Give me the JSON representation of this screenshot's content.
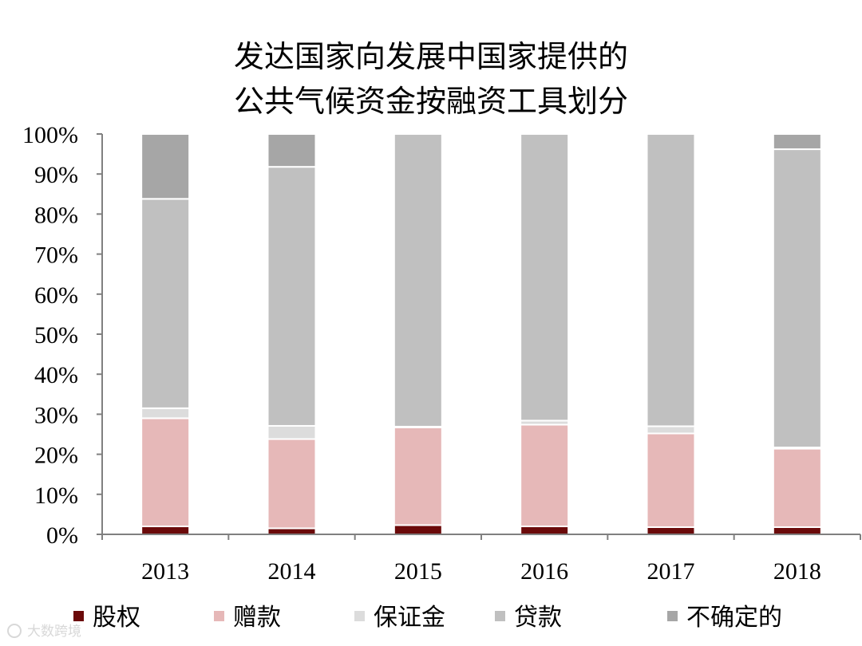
{
  "chart_data": {
    "type": "bar",
    "stacked": true,
    "title_lines": [
      "发达国家向发展中国家提供的",
      "公共气候资金按融资工具划分"
    ],
    "categories": [
      "2013",
      "2014",
      "2015",
      "2016",
      "2017",
      "2018"
    ],
    "ylim": [
      0,
      100
    ],
    "y_ticks": [
      "0%",
      "10%",
      "20%",
      "30%",
      "40%",
      "50%",
      "60%",
      "70%",
      "80%",
      "90%",
      "100%"
    ],
    "grid": false,
    "legend_position": "bottom",
    "series": [
      {
        "name": "股权",
        "color": "#6b0a0a",
        "values": [
          2.0,
          1.5,
          2.3,
          2.0,
          1.8,
          1.8
        ]
      },
      {
        "name": "赠款",
        "color": "#e6b8b8",
        "values": [
          27.0,
          22.3,
          24.4,
          25.4,
          23.4,
          19.6
        ]
      },
      {
        "name": "保证金",
        "color": "#dcdcdc",
        "values": [
          2.5,
          3.3,
          0.2,
          1.0,
          1.8,
          0.3
        ]
      },
      {
        "name": "贷款",
        "color": "#c0c0c0",
        "values": [
          52.3,
          64.7,
          73.1,
          71.6,
          73.0,
          74.5
        ]
      },
      {
        "name": "不确定的",
        "color": "#a6a6a6",
        "values": [
          16.2,
          8.2,
          0.0,
          0.0,
          0.0,
          3.8
        ]
      }
    ]
  },
  "watermark": "大数跨境"
}
